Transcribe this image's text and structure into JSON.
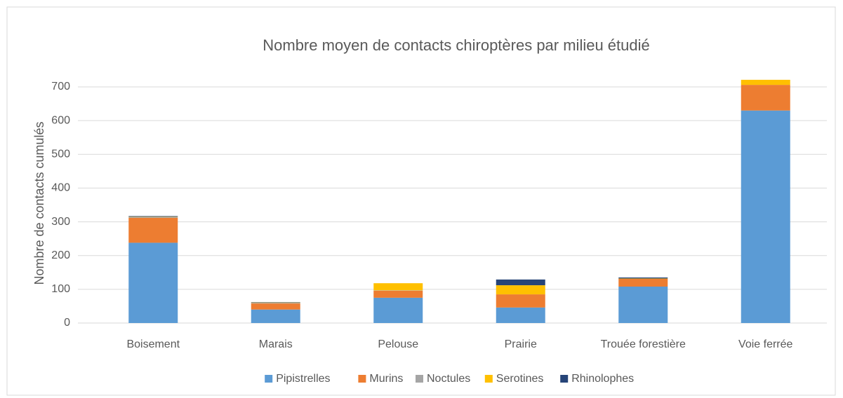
{
  "chart_data": {
    "type": "stacked_bar",
    "title": "Nombre moyen de contacts chiroptères par milieu étudié",
    "y_label": "Nombre de contacts cumulés",
    "categories": [
      "Boisement",
      "Marais",
      "Pelouse",
      "Prairie",
      "Trouée forestière",
      "Voie ferrée"
    ],
    "series": [
      {
        "name": "Pipistrelles",
        "color": "#5b9bd5",
        "values": [
          238,
          40,
          75,
          46,
          108,
          630
        ]
      },
      {
        "name": "Murins",
        "color": "#ed7d31",
        "values": [
          74,
          18,
          21,
          39,
          23,
          76
        ]
      },
      {
        "name": "Noctules",
        "color": "#a5a5a5",
        "values": [
          2,
          2,
          1,
          0,
          0,
          0
        ]
      },
      {
        "name": "Serotines",
        "color": "#ffc000",
        "values": [
          1,
          1,
          21,
          27,
          1,
          15
        ]
      },
      {
        "name": "Rhinolophes",
        "color": "#264478",
        "values": [
          2,
          1,
          0,
          17,
          3,
          0
        ]
      }
    ],
    "ylim": [
      0,
      700
    ],
    "yticks": [
      0,
      100,
      200,
      300,
      400,
      500,
      600,
      700
    ],
    "grid": true,
    "legend": "bottom"
  }
}
